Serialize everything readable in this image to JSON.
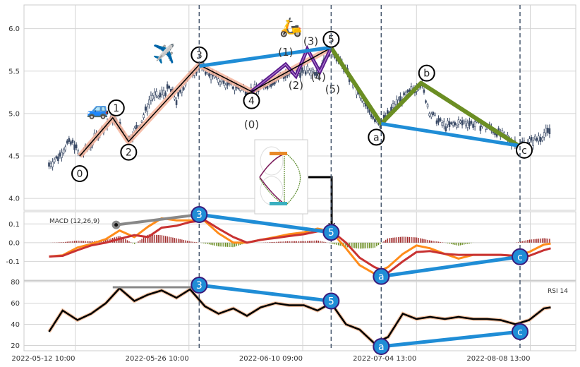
{
  "chart_data": {
    "type": "line",
    "title": "",
    "x_axis": {
      "kind": "bar index",
      "xlim": [
        -5,
        480
      ],
      "ticks": [
        {
          "bar": 40,
          "label": "2022-05-12 10:00"
        },
        {
          "bar": 140,
          "label": "2022-05-26 10:00"
        },
        {
          "bar": 240,
          "label": "2022-06-10 09:00"
        },
        {
          "bar": 340,
          "label": "2022-07-04 13:00"
        },
        {
          "bar": 440,
          "label": "2022-08-08 13:00"
        }
      ],
      "dashed_markers": [
        149,
        265,
        309,
        431
      ]
    },
    "price_panel": {
      "ylim": [
        3.86,
        6.28
      ],
      "yticks": [
        "6.0",
        "5.5",
        "5.0",
        "4.5",
        "4.0"
      ],
      "ytick_values": [
        6.0,
        5.5,
        5.0,
        4.5,
        4.0
      ],
      "close": [
        [
          17,
          4.4
        ],
        [
          26,
          4.5
        ],
        [
          33,
          4.65
        ],
        [
          39,
          4.65
        ],
        [
          42,
          4.55
        ],
        [
          44,
          4.5
        ],
        [
          51,
          4.6
        ],
        [
          60,
          4.75
        ],
        [
          73,
          4.95
        ],
        [
          79,
          4.85
        ],
        [
          87,
          4.7
        ],
        [
          98,
          4.9
        ],
        [
          107,
          5.2
        ],
        [
          113,
          5.2
        ],
        [
          123,
          5.3
        ],
        [
          129,
          5.15
        ],
        [
          138,
          5.4
        ],
        [
          149,
          5.57
        ],
        [
          160,
          5.45
        ],
        [
          172,
          5.35
        ],
        [
          185,
          5.3
        ],
        [
          195,
          5.26
        ],
        [
          210,
          5.35
        ],
        [
          222,
          5.45
        ],
        [
          241,
          5.5
        ],
        [
          253,
          5.5
        ],
        [
          265,
          5.77
        ],
        [
          278,
          5.5
        ],
        [
          290,
          5.2
        ],
        [
          303,
          4.95
        ],
        [
          309,
          4.88
        ],
        [
          321,
          5.1
        ],
        [
          334,
          5.25
        ],
        [
          344,
          5.36
        ],
        [
          352,
          5.0
        ],
        [
          365,
          4.85
        ],
        [
          383,
          4.9
        ],
        [
          402,
          4.85
        ],
        [
          421,
          4.7
        ],
        [
          431,
          4.62
        ],
        [
          446,
          4.7
        ],
        [
          458,
          4.8
        ]
      ],
      "impulse_waves": [
        {
          "label": "0",
          "bar": 44,
          "value": 4.5
        },
        {
          "label": "1",
          "bar": 73,
          "value": 4.95
        },
        {
          "label": "2",
          "bar": 87,
          "value": 4.67
        },
        {
          "label": "3",
          "bar": 149,
          "value": 5.575
        },
        {
          "label": "4",
          "bar": 195,
          "value": 5.26
        },
        {
          "label": "5",
          "bar": 265,
          "value": 5.775
        }
      ],
      "sub_waves": [
        {
          "label": "(0)",
          "bar": 195,
          "value": 5.26
        },
        {
          "label": "(1)",
          "bar": 225,
          "value": 5.58
        },
        {
          "label": "(2)",
          "bar": 234,
          "value": 5.44
        },
        {
          "label": "(3)",
          "bar": 244,
          "value": 5.76
        },
        {
          "label": "(4)",
          "bar": 255,
          "value": 5.49
        },
        {
          "label": "(5)",
          "bar": 265,
          "value": 5.775
        }
      ],
      "corrective_waves": [
        {
          "label": "5",
          "bar": 265,
          "value": 5.775
        },
        {
          "label": "a",
          "bar": 309,
          "value": 4.88
        },
        {
          "label": "b",
          "bar": 344,
          "value": 5.36
        },
        {
          "label": "c",
          "bar": 431,
          "value": 4.61
        }
      ],
      "divergence_lines": [
        [
          [
            149,
            5.56
          ],
          [
            265,
            5.78
          ]
        ],
        [
          [
            309,
            4.88
          ],
          [
            431,
            4.62
          ]
        ]
      ],
      "emojis": [
        {
          "name": "car",
          "glyph": "🚙",
          "bar": 60,
          "value": 4.98
        },
        {
          "name": "airplane",
          "glyph": "✈️",
          "bar": 118,
          "value": 5.63
        },
        {
          "name": "scooter",
          "glyph": "🛵",
          "bar": 236,
          "value": 5.83
        }
      ]
    },
    "macd_panel": {
      "label": "MACD (12,26,9)",
      "ylim": [
        -0.2,
        0.165
      ],
      "yticks": [
        "0.1",
        "0.0",
        "-0.1"
      ],
      "ytick_values": [
        0.1,
        0.0,
        -0.1
      ],
      "bars": [
        17,
        29,
        42,
        54,
        67,
        79,
        92,
        104,
        116,
        129,
        141,
        154,
        166,
        179,
        191,
        203,
        216,
        228,
        241,
        253,
        265,
        278,
        290,
        303,
        315,
        328,
        340,
        352,
        365,
        377,
        390,
        402,
        414,
        427,
        439,
        452,
        458
      ],
      "macd": [
        -0.074,
        -0.067,
        -0.026,
        -0.007,
        0.019,
        0.065,
        0.03,
        0.085,
        0.13,
        0.119,
        0.119,
        0.115,
        0.05,
        0.0,
        0.0,
        0.015,
        0.03,
        0.045,
        0.055,
        0.075,
        0.06,
        -0.03,
        -0.12,
        -0.165,
        -0.13,
        -0.06,
        -0.015,
        -0.03,
        -0.06,
        -0.085,
        -0.065,
        -0.065,
        -0.065,
        -0.07,
        -0.05,
        -0.01,
        -0.005
      ],
      "signal": [
        -0.074,
        -0.07,
        -0.04,
        -0.015,
        0.0,
        0.02,
        0.04,
        0.03,
        0.08,
        0.09,
        0.11,
        0.12,
        0.075,
        0.03,
        0.0,
        0.015,
        0.025,
        0.035,
        0.045,
        0.06,
        0.065,
        0.0,
        -0.08,
        -0.13,
        -0.16,
        -0.1,
        -0.05,
        -0.045,
        -0.06,
        -0.065,
        -0.065,
        -0.065,
        -0.065,
        -0.07,
        -0.07,
        -0.04,
        -0.03
      ],
      "markers": [
        {
          "label": "3",
          "bar": 149,
          "value": 0.15
        },
        {
          "label": "5",
          "bar": 265,
          "value": 0.055
        },
        {
          "label": "a",
          "bar": 309,
          "value": -0.18
        },
        {
          "label": "c",
          "bar": 431,
          "value": -0.075
        }
      ],
      "grey_line": [
        [
          76,
          0.095
        ],
        [
          149,
          0.15
        ]
      ]
    },
    "rsi_panel": {
      "label": "RSI 14",
      "ylim": [
        15,
        81
      ],
      "yticks": [
        "80",
        "60",
        "40",
        "20"
      ],
      "ytick_values": [
        80,
        60,
        40,
        20
      ],
      "rsi": [
        33,
        53,
        44,
        50,
        60,
        74,
        62,
        68,
        72,
        65,
        73,
        57,
        50,
        55,
        48,
        56,
        60,
        58,
        58,
        53,
        60,
        40,
        35,
        22,
        28,
        50,
        45,
        47,
        45,
        47,
        45,
        45,
        44,
        40,
        44,
        55,
        56
      ],
      "markers": [
        {
          "label": "3",
          "bar": 149,
          "value": 77
        },
        {
          "label": "5",
          "bar": 265,
          "value": 62
        },
        {
          "label": "a",
          "bar": 309,
          "value": 19
        },
        {
          "label": "c",
          "bar": 431,
          "value": 33
        }
      ],
      "grey_line": [
        [
          73,
          75
        ],
        [
          149,
          75
        ]
      ]
    },
    "colors": {
      "candle": "#3a4a66",
      "impulse_glow": "#f4b49c",
      "impulse_line": "#000000",
      "sub_wave": "#5a1a8c",
      "corrective": "#6b8e23",
      "divergence": "#1f8dd6",
      "macd": "#ff8c1a",
      "signal": "#c83232",
      "hist_pos": "#a02a2a",
      "hist_neg": "#6b8e23",
      "marker_fill": "#1f8dd6",
      "marker_stroke": "#3a1a7a"
    }
  }
}
